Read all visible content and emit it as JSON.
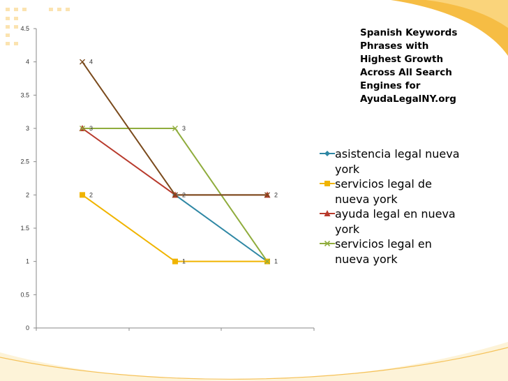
{
  "chart_data": {
    "type": "line",
    "title_lines": [
      "Spanish Keywords",
      "Phrases with",
      "Highest Growth",
      "Across All Search",
      "Engines for",
      "AyudaLegalNY.org"
    ],
    "categories": [
      "",
      "",
      ""
    ],
    "ylim": [
      0,
      4.5
    ],
    "yticks": [
      "0",
      "0.5",
      "1",
      "1.5",
      "2",
      "2.5",
      "3",
      "3.5",
      "4",
      "4.5"
    ],
    "grid": false,
    "legend_position": "right",
    "series": [
      {
        "name": "asistencia legal nueva york",
        "values": [
          null,
          2,
          1
        ],
        "labels": [
          "",
          "",
          ""
        ],
        "color": "#2e87a4",
        "marker": "diamond"
      },
      {
        "name": "servicios legal de nueva york",
        "values": [
          2,
          1,
          1
        ],
        "labels": [
          "2",
          "1",
          "1"
        ],
        "color": "#f0b400",
        "marker": "square"
      },
      {
        "name": "ayuda legal en nueva york",
        "values": [
          3,
          2,
          2
        ],
        "labels": [
          "",
          "",
          ""
        ],
        "color": "#b83a2c",
        "marker": "triangle"
      },
      {
        "name": "servicios legal en nueva york",
        "values": [
          3,
          3,
          1
        ],
        "labels": [
          "3",
          "3",
          ""
        ],
        "color": "#8fac3c",
        "marker": "x"
      },
      {
        "name": "",
        "values": [
          4,
          2,
          2
        ],
        "labels": [
          "4",
          "2",
          "2"
        ],
        "color": "#7a4a1c",
        "marker": "x"
      }
    ]
  },
  "legend_lines": [
    [
      "asistencia legal nueva",
      "york"
    ],
    [
      "servicios legal de",
      "nueva york"
    ],
    [
      "ayuda legal en nueva",
      "york"
    ],
    [
      "servicios legal en",
      "nueva york"
    ]
  ],
  "colors": {
    "decor_orange": "#f5c25a",
    "decor_gold": "#fbe3a8",
    "axis": "#888888"
  }
}
